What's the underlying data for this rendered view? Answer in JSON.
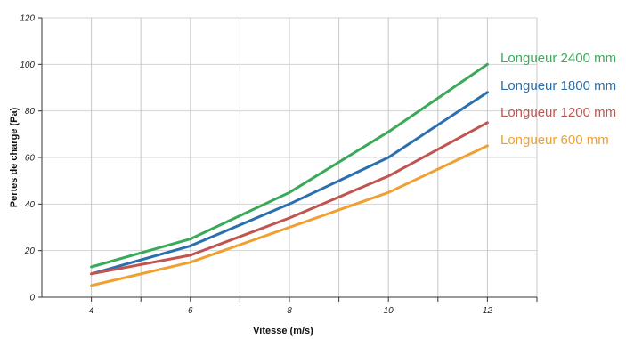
{
  "chart_data": {
    "type": "line",
    "title": "",
    "xlabel": "Vitesse (m/s)",
    "ylabel": "Pertes de charge (Pa)",
    "xlim": [
      3,
      13
    ],
    "ylim": [
      0,
      120
    ],
    "x_ticks": [
      4,
      6,
      8,
      10,
      12
    ],
    "y_ticks": [
      0,
      20,
      40,
      60,
      80,
      100,
      120
    ],
    "grid": true,
    "legend_position": "right",
    "x": [
      4,
      6,
      8,
      10,
      12
    ],
    "series": [
      {
        "name": "Longueur 2400 mm",
        "color": "#3aaa5a",
        "values": [
          13,
          25,
          45,
          71,
          100
        ]
      },
      {
        "name": "Longueur 1800 mm",
        "color": "#2a6fb0",
        "values": [
          10,
          22,
          40,
          60,
          88
        ]
      },
      {
        "name": "Longueur 1200 mm",
        "color": "#bf5450",
        "values": [
          10,
          18,
          34,
          52,
          75
        ]
      },
      {
        "name": "Longueur 600 mm",
        "color": "#f0a030",
        "values": [
          5,
          15,
          30,
          45,
          65
        ]
      }
    ]
  }
}
